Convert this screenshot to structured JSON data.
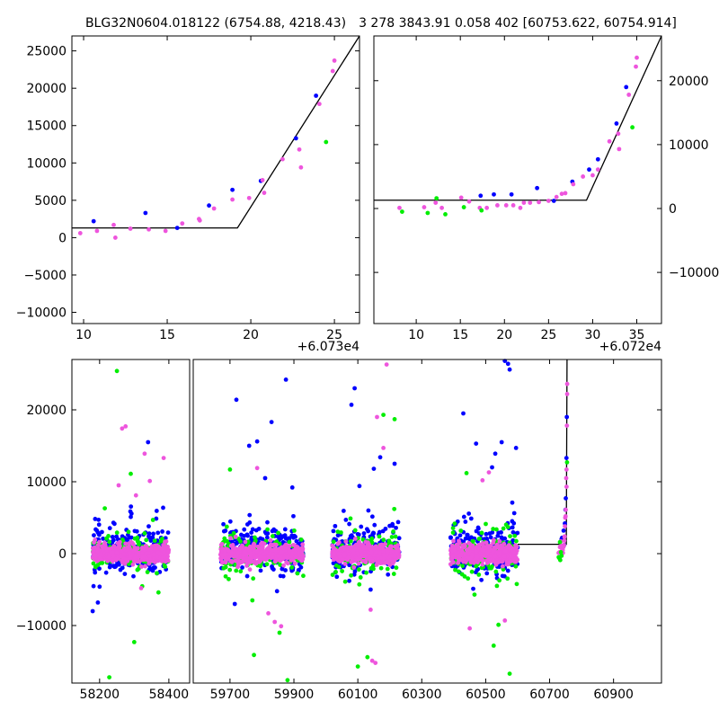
{
  "figure": {
    "title_left": "BLG32N0604.018122 (6754.88, 4218.43)",
    "title_right": "3 278 3843.91 0.058 402 [60753.622, 60754.914]"
  },
  "chart_data": [
    {
      "panel": "top-left",
      "type": "scatter",
      "xlim": [
        9.3,
        26.5
      ],
      "ylim": [
        -11500,
        27000
      ],
      "x_offset_label": "+6.073e4",
      "xticks": [
        10,
        15,
        20,
        25
      ],
      "yticks": [
        -10000,
        -5000,
        0,
        5000,
        10000,
        15000,
        20000,
        25000
      ],
      "ytick_side": "left",
      "model_line": {
        "x": [
          9.3,
          19.2,
          26.5
        ],
        "y": [
          1300,
          1300,
          27000
        ]
      },
      "series": [
        {
          "color": "#0000ff",
          "points": [
            [
              10.6,
              2200
            ],
            [
              13.7,
              3300
            ],
            [
              15.6,
              1300
            ],
            [
              17.5,
              4300
            ],
            [
              18.9,
              6400
            ],
            [
              20.6,
              7600
            ],
            [
              22.7,
              13300
            ],
            [
              23.9,
              19000
            ]
          ]
        },
        {
          "color": "#ee55dd",
          "points": [
            [
              9.8,
              600
            ],
            [
              10.8,
              900
            ],
            [
              11.8,
              1700
            ],
            [
              11.9,
              0
            ],
            [
              12.8,
              1200
            ],
            [
              13.9,
              1100
            ],
            [
              14.9,
              900
            ],
            [
              15.9,
              1900
            ],
            [
              16.9,
              2500
            ],
            [
              16.95,
              2300
            ],
            [
              17.8,
              3900
            ],
            [
              18.9,
              5100
            ],
            [
              19.9,
              5300
            ],
            [
              20.7,
              7700
            ],
            [
              20.8,
              6000
            ],
            [
              21.9,
              10500
            ],
            [
              22.9,
              11800
            ],
            [
              23.0,
              9400
            ],
            [
              24.1,
              17900
            ],
            [
              24.9,
              22300
            ],
            [
              25.0,
              23700
            ]
          ]
        },
        {
          "color": "#00ee00",
          "points": [
            [
              24.5,
              12800
            ]
          ]
        }
      ]
    },
    {
      "panel": "top-right",
      "type": "scatter",
      "xlim": [
        5.2,
        37.8
      ],
      "ylim": [
        -18000,
        27000
      ],
      "x_offset_label": "+6.072e4",
      "xticks": [
        10,
        15,
        20,
        25,
        30,
        35
      ],
      "yticks": [
        -10000,
        0,
        10000,
        20000
      ],
      "ytick_side": "right",
      "model_line": {
        "x": [
          5.2,
          29.3,
          37.8
        ],
        "y": [
          1300,
          1300,
          27000
        ]
      },
      "series": [
        {
          "color": "#0000ff",
          "points": [
            [
              17.3,
              2000
            ],
            [
              18.8,
              2200
            ],
            [
              20.8,
              2200
            ],
            [
              23.7,
              3200
            ],
            [
              25.6,
              1200
            ],
            [
              27.7,
              4200
            ],
            [
              29.6,
              6100
            ],
            [
              30.6,
              7700
            ],
            [
              32.7,
              13300
            ],
            [
              33.8,
              19000
            ]
          ]
        },
        {
          "color": "#ee55dd",
          "points": [
            [
              8.1,
              100
            ],
            [
              10.9,
              200
            ],
            [
              12.2,
              900
            ],
            [
              12.9,
              100
            ],
            [
              15.1,
              1700
            ],
            [
              16.0,
              1100
            ],
            [
              17.2,
              100
            ],
            [
              18.0,
              100
            ],
            [
              19.2,
              500
            ],
            [
              20.2,
              500
            ],
            [
              21.0,
              500
            ],
            [
              21.8,
              100
            ],
            [
              22.2,
              900
            ],
            [
              22.9,
              900
            ],
            [
              23.9,
              1000
            ],
            [
              25.0,
              1200
            ],
            [
              25.9,
              1800
            ],
            [
              26.5,
              2300
            ],
            [
              26.9,
              2400
            ],
            [
              27.8,
              3800
            ],
            [
              28.9,
              5000
            ],
            [
              30.0,
              5200
            ],
            [
              30.6,
              6100
            ],
            [
              31.9,
              10500
            ],
            [
              32.9,
              11700
            ],
            [
              33.0,
              9300
            ],
            [
              34.1,
              17800
            ],
            [
              34.9,
              22200
            ],
            [
              35.0,
              23600
            ]
          ]
        },
        {
          "color": "#00ee00",
          "points": [
            [
              8.4,
              -500
            ],
            [
              11.3,
              -700
            ],
            [
              12.3,
              1600
            ],
            [
              13.3,
              -900
            ],
            [
              15.4,
              200
            ],
            [
              17.4,
              -300
            ],
            [
              34.5,
              12700
            ]
          ]
        }
      ]
    },
    {
      "panel": "bottom",
      "type": "scatter",
      "ylim": [
        -18000,
        27000
      ],
      "yticks": [
        -10000,
        0,
        10000,
        20000
      ],
      "ytick_side": "left",
      "segments": [
        {
          "xlim": [
            58120,
            58460
          ],
          "xticks": [
            58200,
            58400
          ]
        },
        {
          "xlim": [
            59585,
            61050
          ],
          "xticks": [
            59700,
            59900,
            60100,
            60300,
            60500,
            60700,
            60900
          ]
        }
      ],
      "seasons": [
        [
          58180,
          58400
        ],
        [
          59670,
          59930
        ],
        [
          60020,
          60230
        ],
        [
          60390,
          60600
        ]
      ],
      "model_line": {
        "x": [
          60600,
          60752.2,
          60754.5
        ],
        "y": [
          1300,
          1300,
          27000
        ]
      },
      "series": [
        {
          "color": "#0000ff",
          "outliers": [
            [
              58180,
              -8000
            ],
            [
              58195,
              -6800
            ],
            [
              58340,
              15500
            ],
            [
              58240,
              4300
            ],
            [
              58290,
              5100
            ],
            [
              58200,
              -4600
            ],
            [
              59720,
              21400
            ],
            [
              59760,
              15000
            ],
            [
              59785,
              15600
            ],
            [
              59830,
              18300
            ],
            [
              59875,
              24200
            ],
            [
              59810,
              10500
            ],
            [
              59895,
              9200
            ],
            [
              60080,
              20700
            ],
            [
              60090,
              23000
            ],
            [
              60170,
              13400
            ],
            [
              60105,
              9400
            ],
            [
              60215,
              12500
            ],
            [
              60150,
              11800
            ],
            [
              60430,
              19500
            ],
            [
              60470,
              15300
            ],
            [
              60530,
              13900
            ],
            [
              60560,
              26800
            ],
            [
              60570,
              26400
            ],
            [
              60575,
              25600
            ],
            [
              60595,
              14700
            ],
            [
              60550,
              15500
            ],
            [
              60520,
              12000
            ],
            [
              59715,
              -7000
            ],
            [
              60140,
              -5000
            ]
          ]
        },
        {
          "color": "#00ee00",
          "outliers": [
            [
              58250,
              25400
            ],
            [
              58215,
              6300
            ],
            [
              58290,
              11100
            ],
            [
              58370,
              -5400
            ],
            [
              58300,
              -12300
            ],
            [
              58228,
              -17200
            ],
            [
              59700,
              11700
            ],
            [
              59770,
              -6500
            ],
            [
              59775,
              -14100
            ],
            [
              59855,
              -11000
            ],
            [
              59880,
              -17600
            ],
            [
              60130,
              -14400
            ],
            [
              60180,
              19300
            ],
            [
              60215,
              18700
            ],
            [
              60100,
              -15700
            ],
            [
              60525,
              -12800
            ],
            [
              60540,
              -9900
            ],
            [
              60575,
              -16700
            ],
            [
              60440,
              11200
            ],
            [
              60465,
              -5700
            ]
          ]
        },
        {
          "color": "#ee55dd",
          "outliers": [
            [
              58265,
              17400
            ],
            [
              58275,
              17700
            ],
            [
              58255,
              9500
            ],
            [
              58345,
              10100
            ],
            [
              58330,
              13900
            ],
            [
              58385,
              13300
            ],
            [
              58305,
              8100
            ],
            [
              58320,
              -4800
            ],
            [
              59740,
              -1100
            ],
            [
              59785,
              11900
            ],
            [
              59840,
              -9500
            ],
            [
              59860,
              -10100
            ],
            [
              59820,
              -8300
            ],
            [
              60190,
              26300
            ],
            [
              60160,
              19000
            ],
            [
              60180,
              14700
            ],
            [
              60140,
              -7800
            ],
            [
              60145,
              -14900
            ],
            [
              60155,
              -15200
            ],
            [
              60490,
              10200
            ],
            [
              60560,
              -9300
            ],
            [
              60450,
              -10400
            ],
            [
              60510,
              11300
            ]
          ]
        }
      ]
    }
  ]
}
